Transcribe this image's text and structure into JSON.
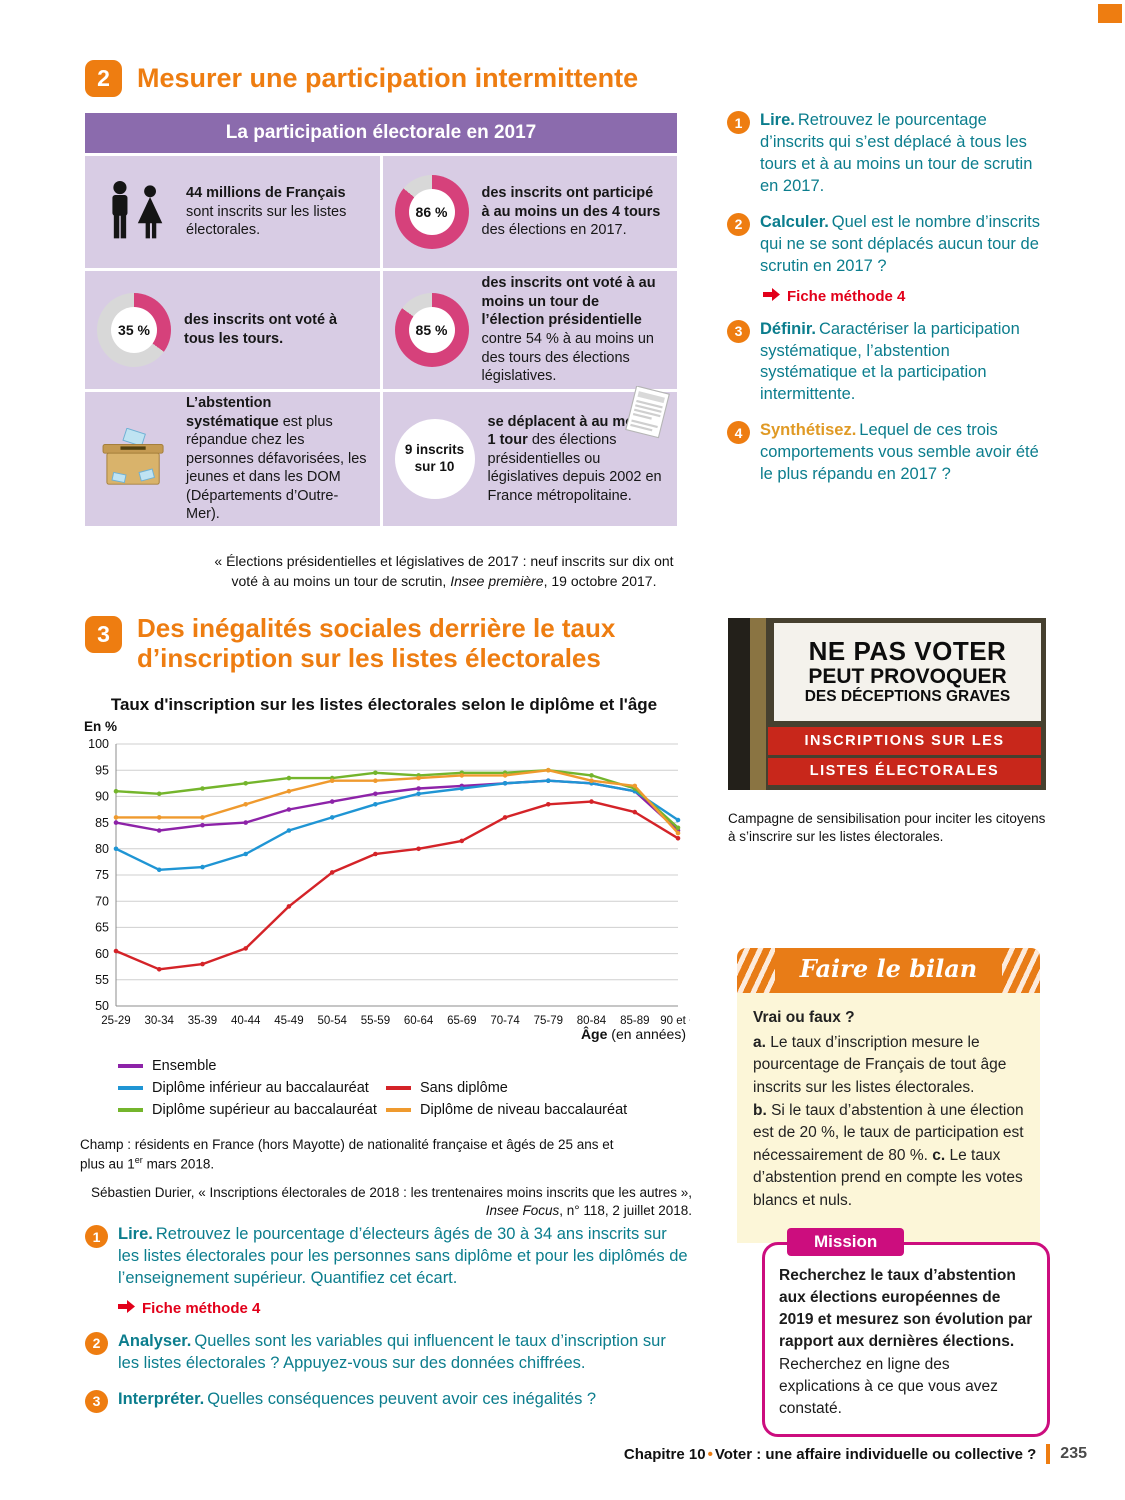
{
  "colors": {
    "accent_orange": "#ee7d11",
    "teal": "#0b7d8d",
    "donut_pink": "#d6417b",
    "donut_rest": "#d8d8d8",
    "purple_header": "#8b6bad",
    "lavender": "#d8cce4",
    "fiche_red": "#e2001a",
    "magenta": "#cc0d7e",
    "bilan_orange": "#e87c17",
    "bilan_cream": "#fcf6d8"
  },
  "section2": {
    "number": "2",
    "title": "Mesurer une participation intermittente",
    "infographic": {
      "header": "La participation électorale en 2017",
      "cells": {
        "registered": {
          "bold": "44 millions de Français",
          "text": "sont inscrits sur les listes électorales."
        },
        "participated": {
          "value": 86,
          "label": "86 %",
          "bold": "des inscrits ont participé à au moins un des 4 tours",
          "text": "des élections en 2017."
        },
        "all_rounds": {
          "value": 35,
          "label": "35 %",
          "bold": "des inscrits ont voté à tous les tours.",
          "text": ""
        },
        "presidential": {
          "value": 85,
          "label": "85 %",
          "bold": "des inscrits ont voté à au moins un tour de l’élection présidentielle",
          "text": "contre 54 % à au moins un des tours des élections législatives."
        },
        "abstention": {
          "bold": "L’abstention systématique",
          "text": "est plus répandue chez les personnes défavorisées, les jeunes et dans les DOM (Départements d’Outre-Mer)."
        },
        "nine_of_ten": {
          "circle_line1": "9 inscrits",
          "circle_line2": "sur 10",
          "bold": "se déplacent à au moins 1 tour",
          "text": "des élections présidentielles ou législatives depuis 2002 en France métropolitaine."
        }
      },
      "caption": {
        "before": "« Élections présidentielles et législatives de 2017 : neuf inscrits sur dix ont voté à au moins un tour de scrutin, ",
        "italic": "Insee première",
        "after": ", 19 octobre 2017."
      }
    },
    "questions": [
      {
        "num": "1",
        "verb": "Lire.",
        "text": "Retrouvez le pourcentage d’inscrits qui s’est déplacé à tous les tours et à au moins un tour de scrutin en 2017."
      },
      {
        "num": "2",
        "verb": "Calculer.",
        "text": "Quel est le nombre d’inscrits qui ne se sont déplacés aucun tour de scrutin en 2017 ?",
        "fiche": "Fiche méthode 4"
      },
      {
        "num": "3",
        "verb": "Définir.",
        "text": "Caractériser la participation systématique, l’abstention systématique et la participation intermittente."
      },
      {
        "num": "4",
        "verb": "Synthétisez.",
        "text": "Lequel de ces trois comportements vous semble avoir été le plus répandu en 2017 ?"
      }
    ]
  },
  "section3": {
    "number": "3",
    "title_line1": "Des inégalités sociales derrière le taux",
    "title_line2": "d’inscription sur les listes électorales",
    "notes": {
      "champ_before": "Champ : résidents en France (hors Mayotte) de nationalité française et âgés de 25 ans et plus au 1",
      "champ_sup": "er",
      "champ_after": " mars 2018.",
      "source_before": "Sébastien Durier, « Inscriptions électorales de 2018 : les trentenaires moins inscrits que les autres », ",
      "source_italic": "Insee Focus",
      "source_after": ", n° 118, 2 juillet 2018."
    },
    "questions": [
      {
        "num": "1",
        "verb": "Lire.",
        "text": "Retrouvez le pourcentage d’électeurs âgés de 30 à 34 ans inscrits sur les listes électorales pour les personnes sans diplôme et pour les diplômés de l’enseignement supérieur. Quantifiez cet écart.",
        "fiche": "Fiche méthode 4"
      },
      {
        "num": "2",
        "verb": "Analyser.",
        "text": "Quelles sont les variables qui influencent le taux d’inscription sur les listes électorales ? Appuyez-vous sur des données chiffrées."
      },
      {
        "num": "3",
        "verb": "Interpréter.",
        "text": "Quelles conséquences peuvent avoir ces inégalités ?"
      }
    ]
  },
  "chart_data": {
    "type": "line",
    "title": "Taux d'inscription sur les listes électorales selon le diplôme et l'âge",
    "ylabel": "En %",
    "xlabel_bold": "Âge",
    "xlabel_rest": " (en années)",
    "ylim": [
      50,
      100
    ],
    "ytick_step": 5,
    "grid": true,
    "legend_position": "bottom",
    "categories": [
      "25-29",
      "30-34",
      "35-39",
      "40-44",
      "45-49",
      "50-54",
      "55-59",
      "60-64",
      "65-69",
      "70-74",
      "75-79",
      "80-84",
      "85-89",
      "90 et +"
    ],
    "series": [
      {
        "name": "Ensemble",
        "color": "#8d23a8",
        "values": [
          85,
          83.5,
          84.5,
          85,
          87.5,
          89,
          90.5,
          91.5,
          92,
          92.5,
          93,
          92.5,
          91,
          83.5
        ]
      },
      {
        "name": "Diplôme inférieur au baccalauréat",
        "color": "#1f95d4",
        "values": [
          80,
          76,
          76.5,
          79,
          83.5,
          86,
          88.5,
          90.5,
          91.5,
          92.5,
          93,
          92.5,
          91,
          85.5
        ]
      },
      {
        "name": "Diplôme supérieur au baccalauréat",
        "color": "#74b52c",
        "values": [
          91,
          90.5,
          91.5,
          92.5,
          93.5,
          93.5,
          94.5,
          94,
          94.5,
          94.5,
          95,
          94,
          91.5,
          84
        ]
      },
      {
        "name": "Sans diplôme",
        "color": "#d42328",
        "values": [
          60.5,
          57,
          58,
          61,
          69,
          75.5,
          79,
          80,
          81.5,
          86,
          88.5,
          89,
          87,
          82
        ]
      },
      {
        "name": "Diplôme de niveau baccalauréat",
        "color": "#ef9a2e",
        "values": [
          86,
          86,
          86,
          88.5,
          91,
          93,
          93,
          93.5,
          94,
          94,
          95,
          93,
          92,
          83
        ]
      }
    ]
  },
  "sidebar": {
    "poster": {
      "line1": "NE PAS VOTER",
      "line2": "PEUT PROVOQUER",
      "line3": "DES DÉCEPTIONS GRAVES",
      "red_line1": "INSCRIPTIONS SUR LES",
      "red_line2": "LISTES ÉLECTORALES"
    },
    "poster_caption": "Campagne de sensibilisation pour inciter les citoyens à s’inscrire sur les listes électorales.",
    "bilan": {
      "header": "Faire le bilan",
      "intro": "Vrai ou faux ?",
      "items": [
        {
          "label": "a.",
          "text": "Le taux d’inscription mesure le pourcentage de Français de tout âge inscrits sur les listes électorales."
        },
        {
          "label": "b.",
          "text": "Si le taux d’abstention à une élection est de 20 %, le taux de participation est nécessairement de 80 %."
        },
        {
          "label": "c.",
          "text": "Le taux d’abstention prend en compte les votes blancs et nuls."
        }
      ]
    },
    "mission": {
      "header": "Mission",
      "bold": "Recherchez le taux d’abstention aux élections européennes de 2019 et mesurez son évolution par rapport aux dernières élections.",
      "text": " Recherchez en ligne des explications à ce que vous avez constaté."
    }
  },
  "footer": {
    "chapter_label": "Chapitre 10",
    "separator": "•",
    "chapter_title": "Voter : une affaire individuelle ou collective ?",
    "page_number": "235"
  }
}
